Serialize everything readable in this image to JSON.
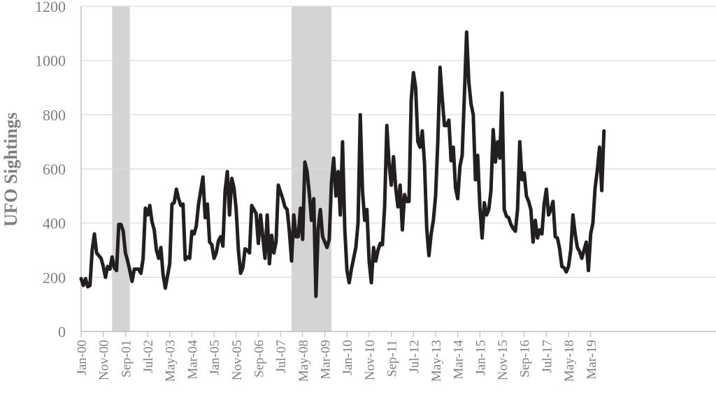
{
  "chart_data": {
    "type": "line",
    "title": "",
    "xlabel": "",
    "ylabel": "UFO Sightings",
    "ylim": [
      0,
      1200
    ],
    "yticks": [
      "0",
      "200",
      "400",
      "600",
      "800",
      "1000",
      "1200"
    ],
    "xtick_labels": [
      "Jan-00",
      "Nov-00",
      "Sep-01",
      "Jul-02",
      "May-03",
      "Mar-04",
      "Jan-05",
      "Nov-05",
      "Sep-06",
      "Jul-07",
      "May-08",
      "Mar-09",
      "Jan-10",
      "Nov-10",
      "Sep-11",
      "Jul-12",
      "May-13",
      "Mar-14",
      "Jan-15",
      "Nov-15",
      "Sep-16",
      "Jul-17",
      "May-18",
      "Mar-19"
    ],
    "grid": "horizontal",
    "line_color": "#231f20",
    "shade_color": "#d4d4d4",
    "shaded_periods": [
      {
        "start": "Mar-01",
        "end": "Nov-01"
      },
      {
        "start": "Dec-07",
        "end": "Jun-09"
      }
    ],
    "series": [
      {
        "x_start": "Jan-00",
        "values": [
          195,
          170,
          195,
          165,
          170,
          300,
          360,
          290,
          280,
          270,
          240,
          200,
          240,
          230,
          275,
          235,
          225,
          395,
          395,
          370,
          290,
          260,
          225,
          185,
          230,
          230,
          230,
          215,
          270,
          455,
          430,
          465,
          405,
          375,
          300,
          270,
          310,
          210,
          160,
          205,
          250,
          470,
          475,
          525,
          490,
          465,
          470,
          265,
          275,
          270,
          370,
          360,
          390,
          470,
          520,
          570,
          420,
          470,
          330,
          320,
          270,
          290,
          335,
          350,
          315,
          520,
          590,
          430,
          565,
          530,
          450,
          300,
          215,
          235,
          305,
          300,
          290,
          465,
          450,
          435,
          325,
          430,
          350,
          270,
          430,
          250,
          355,
          290,
          330,
          540,
          515,
          490,
          460,
          450,
          370,
          260,
          430,
          350,
          350,
          455,
          340,
          625,
          590,
          510,
          410,
          490,
          130,
          380,
          450,
          350,
          330,
          310,
          340,
          550,
          640,
          500,
          590,
          430,
          700,
          380,
          225,
          180,
          230,
          270,
          310,
          400,
          800,
          520,
          410,
          450,
          260,
          180,
          310,
          260,
          300,
          325,
          320,
          460,
          760,
          620,
          540,
          645,
          530,
          460,
          540,
          375,
          505,
          480,
          480,
          855,
          955,
          900,
          700,
          680,
          740,
          620,
          380,
          280,
          360,
          410,
          500,
          700,
          975,
          860,
          760,
          760,
          780,
          630,
          680,
          530,
          490,
          610,
          650,
          870,
          1105,
          920,
          840,
          800,
          560,
          650,
          460,
          345,
          475,
          430,
          450,
          520,
          745,
          625,
          700,
          640,
          880,
          450,
          425,
          420,
          395,
          380,
          370,
          450,
          700,
          560,
          585,
          500,
          480,
          450,
          330,
          410,
          345,
          375,
          360,
          470,
          525,
          430,
          450,
          480,
          350,
          345,
          305,
          240,
          235,
          220,
          240,
          300,
          430,
          360,
          310,
          295,
          270,
          300,
          330,
          225,
          360,
          400,
          530,
          595,
          680,
          520,
          740
        ]
      }
    ]
  }
}
